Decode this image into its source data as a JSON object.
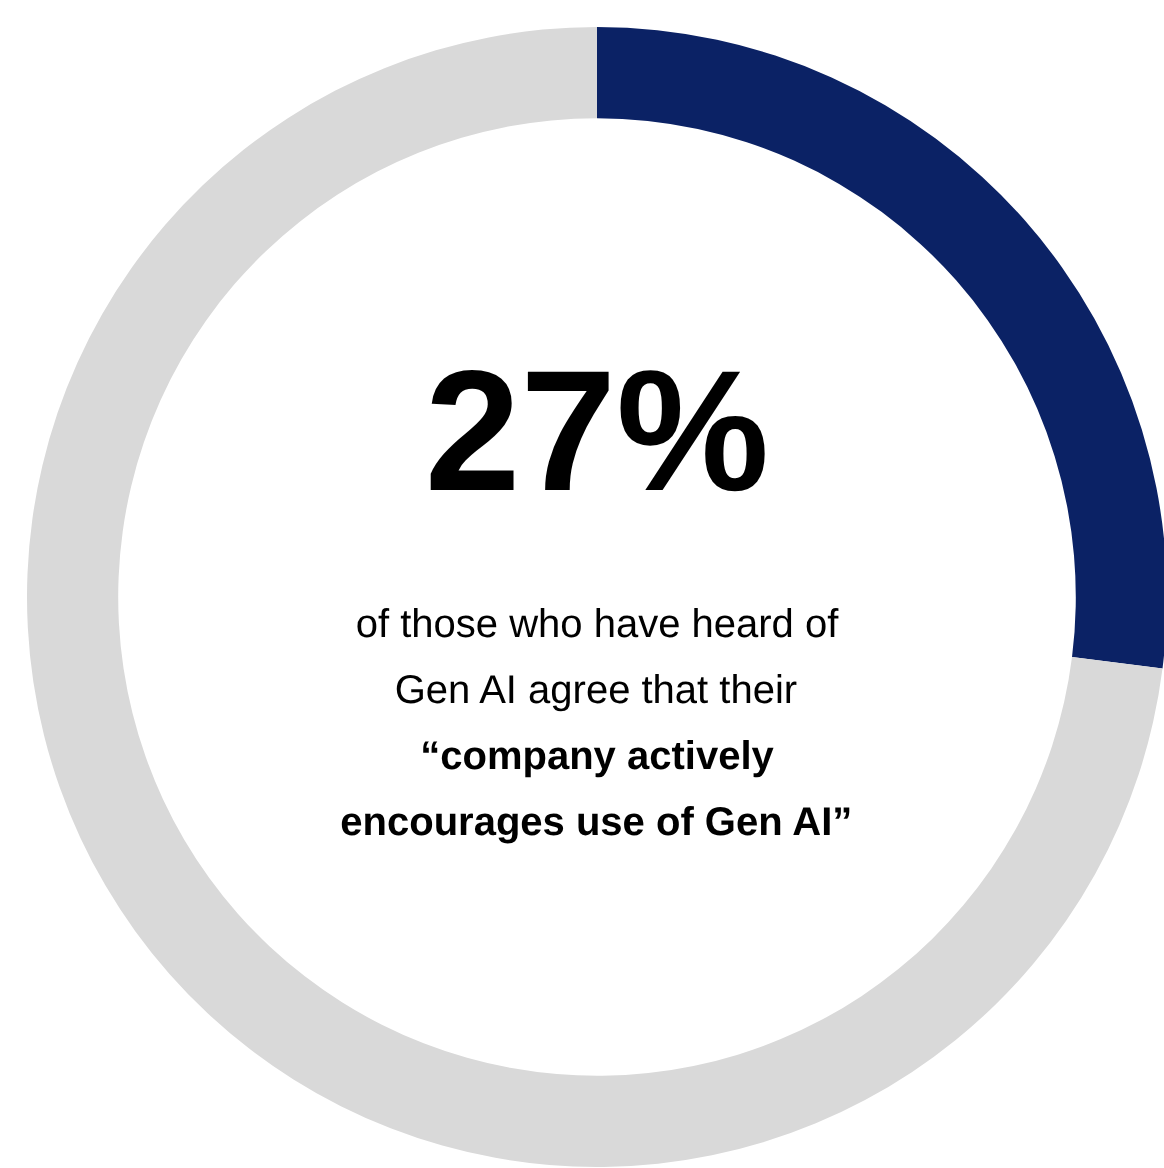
{
  "chart_data": {
    "type": "donut",
    "categories": [
      null,
      null
    ],
    "values": [
      27,
      73
    ],
    "colors": [
      "#0b2265",
      "#d9d9d9"
    ],
    "value_labels": [
      "27%",
      null
    ],
    "annotations": [
      "of those who have heard of Gen AI agree that their",
      "“company actively encourages use of Gen AI”"
    ]
  }
}
